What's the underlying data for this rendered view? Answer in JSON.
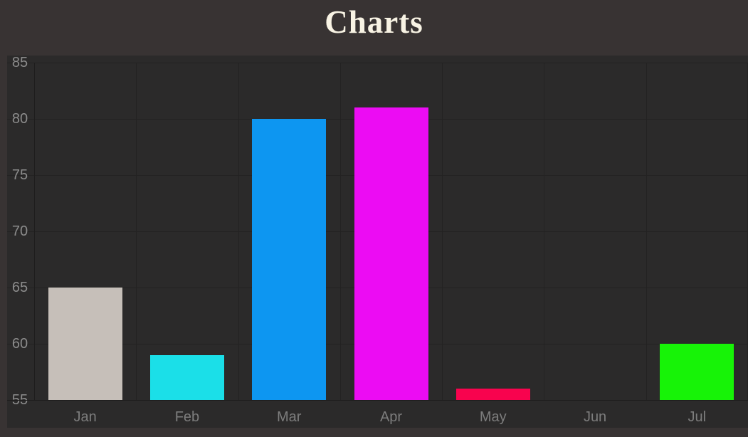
{
  "page": {
    "title": "Charts"
  },
  "chart_data": {
    "type": "bar",
    "title": "Charts",
    "categories": [
      "Jan",
      "Feb",
      "Mar",
      "Apr",
      "May",
      "Jun",
      "Jul"
    ],
    "values": [
      65,
      59,
      80,
      81,
      56,
      null,
      60
    ],
    "bar_colors": [
      "#c6bfb9",
      "#1bdfe8",
      "#0d96f1",
      "#ec0cf3",
      "#f8034e",
      null,
      "#17f307"
    ],
    "xlabel": "",
    "ylabel": "",
    "ylim": [
      55,
      85
    ],
    "yticks": [
      55,
      60,
      65,
      70,
      75,
      80,
      85
    ],
    "grid": true,
    "legend": "none",
    "colors": {
      "page_bg": "#383333",
      "plot_bg": "#2b2a2a",
      "grid": "#232222",
      "axis": "#1e1d1d",
      "tick_label": "#8c8c8c",
      "category_label": "#7d7d7d",
      "title": "#f8f3e4"
    }
  }
}
